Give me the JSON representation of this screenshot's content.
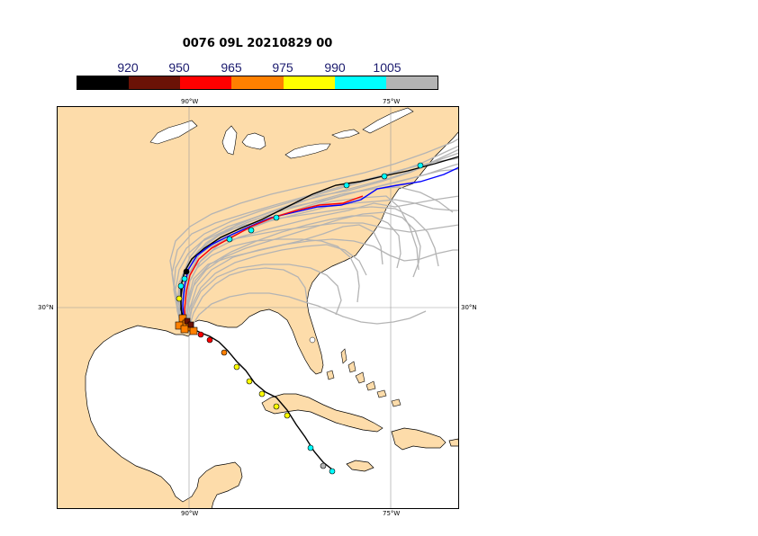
{
  "title": "0076 09L 20210829 00",
  "colorbar": {
    "colors": [
      "#000000",
      "#6b1206",
      "#ff0000",
      "#ff8000",
      "#ffff00",
      "#00ffff",
      "#b4b4b4"
    ],
    "labels": [
      "920",
      "950",
      "965",
      "975",
      "990",
      "1005"
    ]
  },
  "axes": {
    "lon_top": [
      "90°W",
      "75°W"
    ],
    "lon_bottom": [
      "90°W",
      "75°W"
    ],
    "lat_left": "30°N",
    "lat_right": "30°N"
  },
  "map_colors": {
    "land": "#fddcaa",
    "ocean": "#ffffff",
    "ensemble": "#b4b4b4",
    "forecast": "#ff0000",
    "forecast2": "#0000ff",
    "observed": "#000000"
  }
}
